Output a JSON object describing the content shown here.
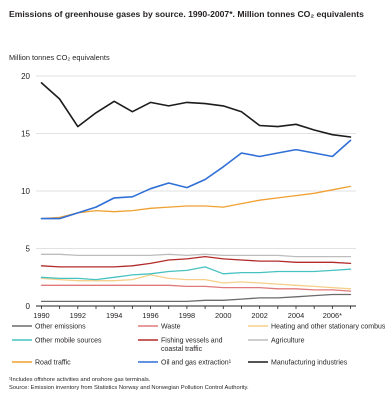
{
  "chart_data": {
    "type": "line",
    "title": "Emissions of greenhouse gases by source. 1990-2007*. Million tonnes CO₂ equivalents",
    "ylabel": "Million tonnes CO₂ equivalents",
    "xlabel": "",
    "x": [
      1990,
      1991,
      1992,
      1993,
      1994,
      1995,
      1996,
      1997,
      1998,
      1999,
      2000,
      2001,
      2002,
      2003,
      2004,
      2005,
      2006,
      2007
    ],
    "x_tick_labels": [
      "1990",
      "1992",
      "1994",
      "1996",
      "1998",
      "2000",
      "2002",
      "2004",
      "2006*"
    ],
    "y_ticks": [
      0,
      5,
      10,
      15,
      20
    ],
    "ylim": [
      0,
      20
    ],
    "xlim": [
      1989.7,
      2007.3
    ],
    "grid": true,
    "legend_position": "bottom",
    "series": [
      {
        "name": "Agriculture",
        "color": "#bdbdbd",
        "values": [
          4.5,
          4.5,
          4.4,
          4.4,
          4.4,
          4.4,
          4.4,
          4.5,
          4.4,
          4.5,
          4.4,
          4.4,
          4.4,
          4.4,
          4.3,
          4.3,
          4.3,
          4.3
        ]
      },
      {
        "name": "Other emissions",
        "color": "#6b6b6b",
        "values": [
          0.4,
          0.4,
          0.4,
          0.4,
          0.4,
          0.4,
          0.4,
          0.4,
          0.4,
          0.5,
          0.5,
          0.6,
          0.7,
          0.7,
          0.8,
          0.9,
          1.0,
          1.0
        ]
      },
      {
        "name": "Waste",
        "color": "#e07a7a",
        "values": [
          1.8,
          1.8,
          1.8,
          1.8,
          1.8,
          1.8,
          1.8,
          1.8,
          1.7,
          1.7,
          1.6,
          1.6,
          1.6,
          1.5,
          1.5,
          1.4,
          1.4,
          1.3
        ]
      },
      {
        "name": "Heating and other stationary combustion",
        "color": "#f5cf8a",
        "values": [
          2.4,
          2.3,
          2.2,
          2.2,
          2.2,
          2.3,
          2.7,
          2.4,
          2.3,
          2.3,
          2.0,
          2.1,
          2.0,
          1.9,
          1.8,
          1.7,
          1.6,
          1.5
        ]
      },
      {
        "name": "Other mobile sources",
        "color": "#47c2c2",
        "values": [
          2.5,
          2.4,
          2.4,
          2.3,
          2.5,
          2.7,
          2.8,
          3.0,
          3.1,
          3.4,
          2.8,
          2.9,
          2.9,
          3.0,
          3.0,
          3.0,
          3.1,
          3.2
        ]
      },
      {
        "name": "Fishing vessels and coastal traffic",
        "color": "#b32a2a",
        "values": [
          3.5,
          3.4,
          3.4,
          3.4,
          3.4,
          3.5,
          3.7,
          4.0,
          4.1,
          4.3,
          4.1,
          4.0,
          3.9,
          3.9,
          3.8,
          3.8,
          3.8,
          3.7
        ]
      },
      {
        "name": "Road traffic",
        "color": "#f0a030",
        "values": [
          7.6,
          7.7,
          8.1,
          8.3,
          8.2,
          8.3,
          8.5,
          8.6,
          8.7,
          8.7,
          8.6,
          8.9,
          9.2,
          9.4,
          9.6,
          9.8,
          10.1,
          10.4
        ]
      },
      {
        "name": "Oil and gas extraction¹",
        "color": "#2f6fd6",
        "values": [
          7.6,
          7.6,
          8.1,
          8.6,
          9.4,
          9.5,
          10.2,
          10.7,
          10.3,
          11.0,
          12.1,
          13.3,
          13.0,
          13.3,
          13.6,
          13.3,
          13.0,
          14.4
        ]
      },
      {
        "name": "Manufacturing industries",
        "color": "#1c1c1c",
        "values": [
          19.4,
          18.0,
          15.6,
          16.8,
          17.8,
          16.9,
          17.7,
          17.4,
          17.7,
          17.6,
          17.4,
          16.9,
          15.7,
          15.6,
          15.8,
          15.3,
          14.9,
          14.7
        ]
      }
    ],
    "legend": [
      {
        "name": "Other emissions",
        "color": "#6b6b6b"
      },
      {
        "name": "Waste",
        "color": "#e07a7a"
      },
      {
        "name": "Heating and other stationary combustion",
        "color": "#f5cf8a"
      },
      {
        "name": "Other mobile sources",
        "color": "#47c2c2"
      },
      {
        "name": "Fishing vessels and coastal traffic",
        "color": "#b32a2a"
      },
      {
        "name": "Agriculture",
        "color": "#bdbdbd"
      },
      {
        "name": "Road traffic",
        "color": "#f0a030"
      },
      {
        "name": "Oil and gas extraction¹",
        "color": "#2f6fd6"
      },
      {
        "name": "Manufacturing industries",
        "color": "#1c1c1c"
      }
    ]
  },
  "footnotes": {
    "note1": "¹Includes offshore activities and onshore gas terminals.",
    "source": "Source: Emission inventory from Statistics Norway and Norwegian Pollution Control Authority."
  }
}
